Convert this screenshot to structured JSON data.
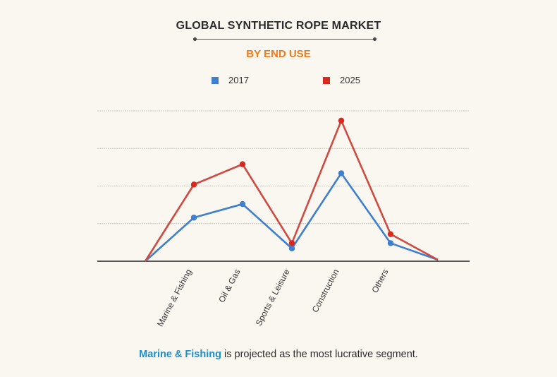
{
  "header": {
    "title": "GLOBAL SYNTHETIC ROPE MARKET",
    "subtitle": "BY END USE"
  },
  "footer": {
    "highlight": "Marine & Fishing",
    "rest": " is projected as the most lucrative segment."
  },
  "colors": {
    "series_2017": "#3f7fd0",
    "series_2025": "#cf4a40",
    "marker_2025": "#d62a20",
    "subtitle": "#f07a1a",
    "highlight": "#1a8fd0"
  },
  "chart_data": {
    "type": "line",
    "categories": [
      "Marine & Fishing",
      "Oil & Gas",
      "Sports & Leisure",
      "Construction",
      "Others"
    ],
    "series": [
      {
        "name": "2017",
        "values": [
          1.16,
          1.52,
          0.34,
          2.34,
          0.48
        ]
      },
      {
        "name": "2025",
        "values": [
          2.04,
          2.58,
          0.48,
          3.74,
          0.72
        ]
      }
    ],
    "ylim": [
      0,
      4
    ],
    "grid": true,
    "legend": "top-center"
  }
}
